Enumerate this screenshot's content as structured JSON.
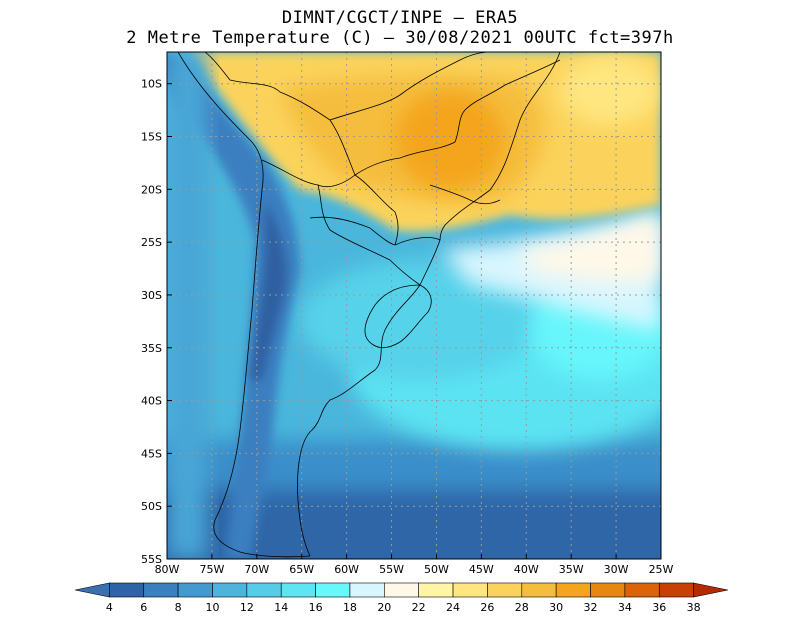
{
  "title": {
    "line1": "DIMNT/CGCT/INPE –  ERA5",
    "line2": "2 Metre Temperature (C) –  30/08/2021 00UTC fct=397h"
  },
  "map": {
    "lon_range": [
      -80,
      -25
    ],
    "lat_range": [
      -55,
      -7
    ],
    "lon_ticks": [
      "80W",
      "75W",
      "70W",
      "65W",
      "60W",
      "55W",
      "50W",
      "45W",
      "40W",
      "35W",
      "30W",
      "25W"
    ],
    "lat_ticks": [
      "10S",
      "15S",
      "20S",
      "25S",
      "30S",
      "35S",
      "40S",
      "45S",
      "50S",
      "55S"
    ],
    "gridlines": true
  },
  "colorbar": {
    "labels": [
      "4",
      "6",
      "8",
      "10",
      "12",
      "14",
      "16",
      "18",
      "20",
      "22",
      "24",
      "26",
      "28",
      "30",
      "32",
      "34",
      "36",
      "38"
    ],
    "colors": [
      "#3a6fb0",
      "#2f63a8",
      "#3b7fc0",
      "#4499cf",
      "#4eb4dc",
      "#55cde8",
      "#5ce5f2",
      "#66f8fb",
      "#d8f6ff",
      "#fff8e8",
      "#fff5a6",
      "#ffe680",
      "#fbd35c",
      "#f5bd3c",
      "#f4a51c",
      "#e8870e",
      "#dc6308",
      "#c94004",
      "#b52a02"
    ]
  }
}
